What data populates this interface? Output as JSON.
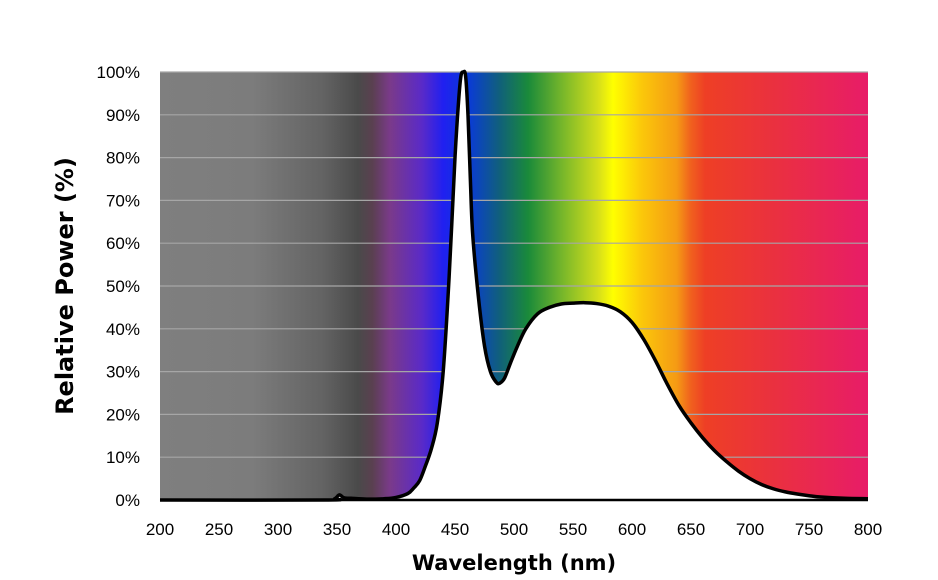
{
  "chart_data": {
    "type": "area",
    "title": "",
    "xlabel": "Wavelength (nm)",
    "ylabel": "Relative Power (%)",
    "xlim": [
      200,
      800
    ],
    "ylim": [
      0,
      100
    ],
    "x_ticks": [
      200,
      250,
      300,
      350,
      400,
      450,
      500,
      550,
      600,
      650,
      700,
      750,
      800
    ],
    "y_ticks": [
      0,
      10,
      20,
      30,
      40,
      50,
      60,
      70,
      80,
      90,
      100
    ],
    "x_tick_labels": [
      "200",
      "250",
      "300",
      "350",
      "400",
      "450",
      "500",
      "550",
      "600",
      "650",
      "700",
      "750",
      "800"
    ],
    "y_tick_labels": [
      "0%",
      "10%",
      "20%",
      "30%",
      "40%",
      "50%",
      "60%",
      "70%",
      "80%",
      "90%",
      "100%"
    ],
    "grid": true,
    "legend": "none",
    "background": "wavelength color spectrum (gray below ~350 nm, violet-blue-green-yellow-orange-red above)",
    "series": [
      {
        "x": [
          200,
          340,
          348,
          352,
          356,
          362,
          375,
          390,
          400,
          410,
          415,
          420,
          425,
          430,
          435,
          440,
          445,
          450,
          453,
          455,
          457,
          459,
          461,
          463,
          465,
          470,
          475,
          480,
          485,
          488,
          492,
          497,
          503,
          510,
          520,
          530,
          540,
          550,
          560,
          570,
          580,
          590,
          600,
          610,
          620,
          630,
          640,
          650,
          660,
          670,
          680,
          690,
          700,
          710,
          720,
          730,
          740,
          750,
          760,
          780,
          800
        ],
        "y": [
          0,
          0,
          0.3,
          1.2,
          0.5,
          0.4,
          0.2,
          0.3,
          0.6,
          1.5,
          2.8,
          4.5,
          8,
          12,
          18,
          30,
          52,
          80,
          93,
          99,
          100,
          99,
          90,
          75,
          62,
          47,
          36,
          30,
          27.5,
          27.3,
          28.5,
          32,
          36,
          40,
          43.5,
          45,
          45.8,
          46,
          46.1,
          45.9,
          45.3,
          44,
          41.5,
          37.5,
          32.5,
          27,
          22,
          18,
          14.5,
          11.5,
          9,
          6.8,
          5,
          3.6,
          2.6,
          1.9,
          1.4,
          1,
          0.7,
          0.4,
          0.3
        ]
      }
    ],
    "line_color": "#000000",
    "fill_color": "#ffffff",
    "gridline_color": "#a6a6a6"
  }
}
